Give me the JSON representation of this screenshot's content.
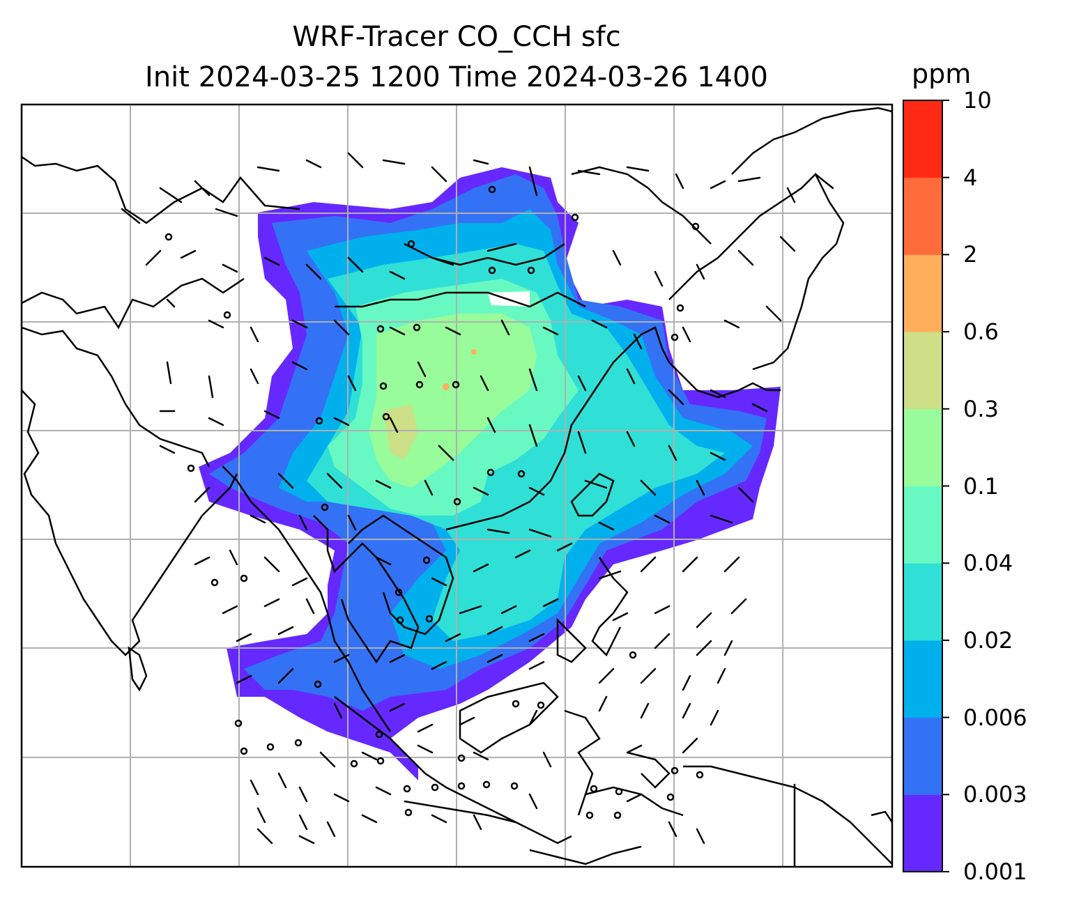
{
  "title_line1": "WRF-Tracer CO_CCH sfc",
  "title_line2": "Init 2024-03-25 1200 Time 2024-03-26 1400",
  "colorbar": {
    "unit": "ppm",
    "levels": [
      "0.001",
      "0.003",
      "0.006",
      "0.02",
      "0.04",
      "0.1",
      "0.3",
      "0.6",
      "2",
      "4",
      "10"
    ],
    "colors": [
      "#6529ff",
      "#3472f5",
      "#00b0ec",
      "#30dfd6",
      "#68f9c2",
      "#98fc9a",
      "#cddf87",
      "#ffaf5c",
      "#ff6c3c",
      "#ff2a16"
    ]
  },
  "map": {
    "projection_grid": "on",
    "features": [
      "coastlines",
      "country-borders",
      "wind-barbs",
      "station-circles"
    ]
  }
}
